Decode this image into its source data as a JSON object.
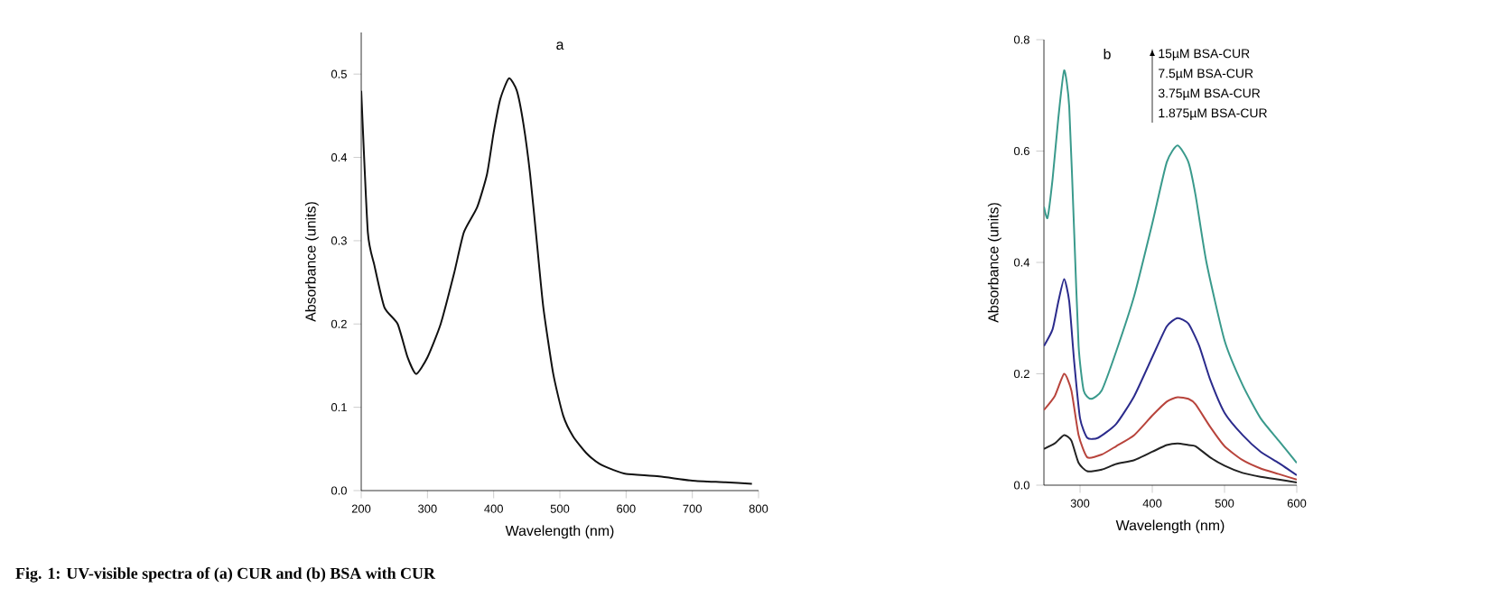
{
  "chart_data": [
    {
      "type": "line",
      "title": "a",
      "xlabel": "Wavelength (nm)",
      "ylabel": "Absorbance (units)",
      "xlim": [
        200,
        800
      ],
      "ylim": [
        0,
        0.55
      ],
      "xticks": [
        200,
        300,
        400,
        500,
        600,
        700,
        800
      ],
      "yticks": [
        {
          "value": 0,
          "label": "0.0"
        },
        {
          "value": 0.1,
          "label": "0.1"
        },
        {
          "value": 0.2,
          "label": "0.2"
        },
        {
          "value": 0.3,
          "label": "0.3"
        },
        {
          "value": 0.4,
          "label": "0.4"
        },
        {
          "value": 0.5,
          "label": "0.5"
        }
      ],
      "series": [
        {
          "color": "#111111",
          "x": [
            200,
            210,
            220,
            235,
            255,
            270,
            283,
            300,
            320,
            340,
            355,
            375,
            390,
            400,
            410,
            423,
            435,
            445,
            455,
            465,
            475,
            490,
            505,
            520,
            540,
            560,
            580,
            600,
            650,
            700,
            750,
            790
          ],
          "values": [
            0.48,
            0.31,
            0.27,
            0.22,
            0.2,
            0.16,
            0.14,
            0.16,
            0.2,
            0.26,
            0.31,
            0.34,
            0.38,
            0.43,
            0.47,
            0.495,
            0.48,
            0.44,
            0.38,
            0.3,
            0.22,
            0.14,
            0.09,
            0.065,
            0.045,
            0.032,
            0.025,
            0.02,
            0.017,
            0.012,
            0.01,
            0.008
          ]
        }
      ],
      "annotations": [
        "Fig. 1: UV-visible spectra of (a) CUR and (b) BSA with CUR"
      ]
    },
    {
      "type": "line",
      "title": "b",
      "xlabel": "Wavelength (nm)",
      "ylabel": "Absorbance (units)",
      "xlim": [
        250,
        600
      ],
      "ylim": [
        0,
        0.8
      ],
      "xticks": [
        300,
        400,
        500,
        600
      ],
      "yticks": [
        {
          "value": 0,
          "label": "0.0"
        },
        {
          "value": 0.2,
          "label": "0.2"
        },
        {
          "value": 0.4,
          "label": "0.4"
        },
        {
          "value": 0.6,
          "label": "0.6"
        },
        {
          "value": 0.8,
          "label": "0.8"
        }
      ],
      "series": [
        {
          "color": "#3a9a8c",
          "x": [
            250,
            255,
            262,
            270,
            278,
            285,
            292,
            298,
            305,
            315,
            330,
            350,
            375,
            400,
            420,
            435,
            450,
            460,
            475,
            500,
            525,
            550,
            575,
            600
          ],
          "values": [
            0.5,
            0.48,
            0.55,
            0.66,
            0.745,
            0.68,
            0.45,
            0.25,
            0.17,
            0.155,
            0.17,
            0.24,
            0.34,
            0.47,
            0.58,
            0.61,
            0.58,
            0.52,
            0.4,
            0.26,
            0.18,
            0.12,
            0.08,
            0.04
          ]
        },
        {
          "color": "#2b2b8c",
          "x": [
            250,
            262,
            270,
            278,
            285,
            292,
            300,
            310,
            325,
            350,
            375,
            400,
            420,
            435,
            450,
            465,
            480,
            500,
            525,
            550,
            575,
            600
          ],
          "values": [
            0.25,
            0.28,
            0.33,
            0.37,
            0.33,
            0.22,
            0.12,
            0.085,
            0.085,
            0.11,
            0.16,
            0.23,
            0.285,
            0.3,
            0.29,
            0.25,
            0.19,
            0.13,
            0.09,
            0.06,
            0.04,
            0.018
          ]
        },
        {
          "color": "#b8443c",
          "x": [
            250,
            265,
            278,
            288,
            298,
            310,
            330,
            350,
            375,
            400,
            420,
            435,
            450,
            460,
            480,
            500,
            525,
            550,
            575,
            600
          ],
          "values": [
            0.135,
            0.16,
            0.2,
            0.17,
            0.09,
            0.05,
            0.055,
            0.07,
            0.09,
            0.125,
            0.15,
            0.158,
            0.155,
            0.145,
            0.105,
            0.07,
            0.045,
            0.03,
            0.02,
            0.01
          ]
        },
        {
          "color": "#222222",
          "x": [
            250,
            265,
            278,
            288,
            298,
            310,
            330,
            350,
            375,
            400,
            420,
            435,
            450,
            460,
            480,
            500,
            525,
            550,
            575,
            600
          ],
          "values": [
            0.065,
            0.075,
            0.09,
            0.08,
            0.04,
            0.025,
            0.028,
            0.038,
            0.045,
            0.06,
            0.072,
            0.075,
            0.072,
            0.07,
            0.05,
            0.035,
            0.022,
            0.015,
            0.01,
            0.005
          ]
        }
      ],
      "annotations": [
        "15µM BSA-CUR",
        "7.5µM BSA-CUR",
        "3.75µM BSA-CUR",
        "1.875µM BSA-CUR"
      ]
    }
  ]
}
